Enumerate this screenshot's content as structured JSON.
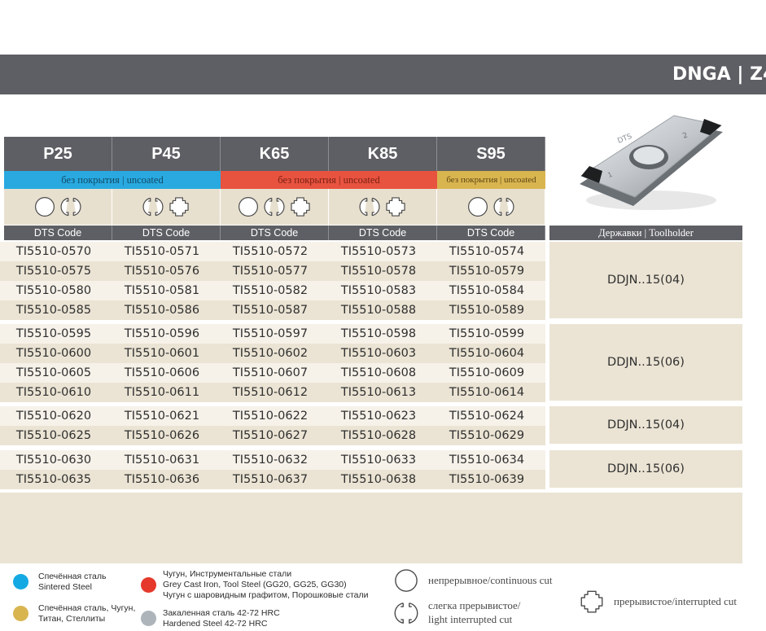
{
  "header": {
    "title": "DNGA | Z4"
  },
  "grades": [
    {
      "name": "P25",
      "cut_icons": [
        "continuous-cut",
        "light-interrupted-cut"
      ]
    },
    {
      "name": "P45",
      "cut_icons": [
        "light-interrupted-cut",
        "interrupted-cut"
      ]
    },
    {
      "name": "K65",
      "cut_icons": [
        "continuous-cut",
        "light-interrupted-cut",
        "interrupted-cut"
      ]
    },
    {
      "name": "K85",
      "cut_icons": [
        "light-interrupted-cut",
        "interrupted-cut"
      ]
    },
    {
      "name": "S95",
      "cut_icons": [
        "continuous-cut",
        "light-interrupted-cut"
      ]
    }
  ],
  "coating": [
    {
      "label": "без покрытия | uncoated",
      "color": "#29a9e0"
    },
    {
      "label": "без покрытия | uncoated",
      "color": "#e8533f"
    },
    {
      "label": "без покрытия | uncoated",
      "color": "#d9b550"
    }
  ],
  "table": {
    "code_header": "DTS Code",
    "toolholder_header": "Державки | Toolholder",
    "groups": [
      {
        "toolholder": "DDJN..15(04)",
        "rows": [
          [
            "TI5510-0570",
            "TI5510-0571",
            "TI5510-0572",
            "TI5510-0573",
            "TI5510-0574"
          ],
          [
            "TI5510-0575",
            "TI5510-0576",
            "TI5510-0577",
            "TI5510-0578",
            "TI5510-0579"
          ],
          [
            "TI5510-0580",
            "TI5510-0581",
            "TI5510-0582",
            "TI5510-0583",
            "TI5510-0584"
          ],
          [
            "TI5510-0585",
            "TI5510-0586",
            "TI5510-0587",
            "TI5510-0588",
            "TI5510-0589"
          ]
        ]
      },
      {
        "toolholder": "DDJN..15(06)",
        "rows": [
          [
            "TI5510-0595",
            "TI5510-0596",
            "TI5510-0597",
            "TI5510-0598",
            "TI5510-0599"
          ],
          [
            "TI5510-0600",
            "TI5510-0601",
            "TI5510-0602",
            "TI5510-0603",
            "TI5510-0604"
          ],
          [
            "TI5510-0605",
            "TI5510-0606",
            "TI5510-0607",
            "TI5510-0608",
            "TI5510-0609"
          ],
          [
            "TI5510-0610",
            "TI5510-0611",
            "TI5510-0612",
            "TI5510-0613",
            "TI5510-0614"
          ]
        ]
      },
      {
        "toolholder": "DDJN..15(04)",
        "rows": [
          [
            "TI5510-0620",
            "TI5510-0621",
            "TI5510-0622",
            "TI5510-0623",
            "TI5510-0624"
          ],
          [
            "TI5510-0625",
            "TI5510-0626",
            "TI5510-0627",
            "TI5510-0628",
            "TI5510-0629"
          ]
        ]
      },
      {
        "toolholder": "DDJN..15(06)",
        "rows": [
          [
            "TI5510-0630",
            "TI5510-0631",
            "TI5510-0632",
            "TI5510-0633",
            "TI5510-0634"
          ],
          [
            "TI5510-0635",
            "TI5510-0636",
            "TI5510-0637",
            "TI5510-0638",
            "TI5510-0639"
          ]
        ]
      }
    ]
  },
  "legend": {
    "materials": [
      {
        "color": "#14a9e3",
        "line1": "Спечённая сталь",
        "line2": "Sintered Steel",
        "line3": ""
      },
      {
        "color": "#d9b550",
        "line1": "Спечённая сталь, Чугун,",
        "line2": "Титан, Стеллиты",
        "line3": ""
      },
      {
        "color": "#e5392b",
        "line1": "Чугун, Инструментальные стали",
        "line2": "Grey Cast Iron, Tool Steel (GG20, GG25, GG30)",
        "line3": "Чугун с шаровидным графитом, Порошковые стали"
      },
      {
        "color": "#adb4ba",
        "line1": "Закаленная сталь 42-72 HRC",
        "line2": "Hardened Steel 42-72 HRC",
        "line3": ""
      }
    ],
    "cuts": [
      {
        "icon": "continuous-cut",
        "line1": "непрерывное/continuous cut",
        "line2": ""
      },
      {
        "icon": "light-interrupted-cut",
        "line1": "слегка   прерывистое/",
        "line2": "light interrupted cut"
      },
      {
        "icon": "interrupted-cut",
        "line1": "прерывистое/interrupted cut",
        "line2": ""
      }
    ]
  },
  "insert_image": {
    "icon": "insert-image",
    "markings": [
      "DTS",
      "2",
      "1"
    ]
  }
}
